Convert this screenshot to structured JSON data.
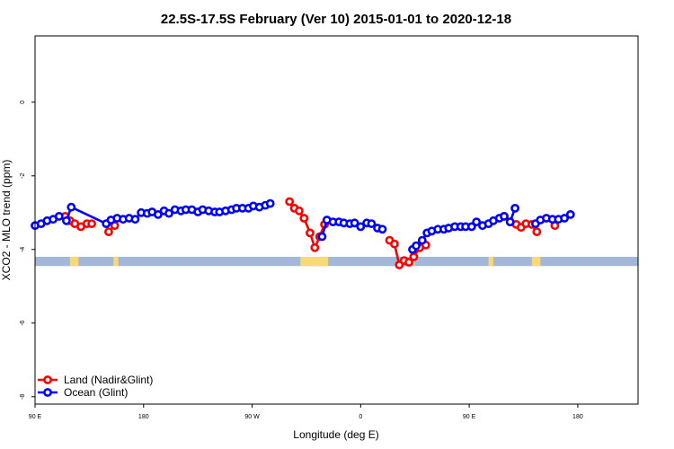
{
  "chart_data": {
    "type": "line",
    "title": "22.5S-17.5S February (Ver 10)   2015-01-01 to 2020-12-18",
    "xlabel": "Longitude (deg E)",
    "ylabel": "XCO2 - MLO trend (ppm)",
    "xlim": [
      90,
      590
    ],
    "ylim": [
      -8.2,
      1.8
    ],
    "x_ticks": [
      {
        "value": 90,
        "label": "90 E"
      },
      {
        "value": 180,
        "label": "180"
      },
      {
        "value": 270,
        "label": "90 W"
      },
      {
        "value": 360,
        "label": "0"
      },
      {
        "value": 450,
        "label": "90 E"
      },
      {
        "value": 540,
        "label": "180"
      }
    ],
    "y_ticks": [
      {
        "value": 0,
        "label": "0"
      },
      {
        "value": -2,
        "label": "-2"
      },
      {
        "value": -4,
        "label": "-4"
      },
      {
        "value": -6,
        "label": "-6"
      },
      {
        "value": -8,
        "label": "-8"
      }
    ],
    "grid": false,
    "legend_position": "bottom-left",
    "land_mask": {
      "y_range": [
        -4.45,
        -4.2
      ],
      "ocean_color": "#a3b8d9",
      "land_color": "#f7d97c",
      "land_segments": [
        [
          119,
          126
        ],
        [
          155,
          159
        ],
        [
          310,
          333
        ],
        [
          404,
          405
        ],
        [
          466,
          470
        ],
        [
          502,
          509
        ]
      ]
    },
    "series": [
      {
        "name": "Land (Nadir&Glint)",
        "color": "#ff0000",
        "segments": [
          [
            [
              115,
              -3.1
            ],
            [
              119,
              -3.22
            ],
            [
              123,
              -3.3
            ],
            [
              128,
              -3.38
            ],
            [
              133,
              -3.3
            ],
            [
              137,
              -3.3
            ]
          ],
          [
            [
              151,
              -3.52
            ],
            [
              156,
              -3.35
            ]
          ],
          [
            [
              301,
              -2.7
            ],
            [
              305,
              -2.88
            ],
            [
              309,
              -2.95
            ],
            [
              313,
              -3.15
            ],
            [
              318,
              -3.55
            ],
            [
              322,
              -3.95
            ],
            [
              326,
              -3.65
            ],
            [
              330,
              -3.32
            ]
          ],
          [
            [
              384,
              -3.75
            ],
            [
              388,
              -3.85
            ],
            [
              392,
              -4.42
            ],
            [
              396,
              -4.3
            ],
            [
              400,
              -4.35
            ],
            [
              404,
              -4.2
            ],
            [
              409,
              -3.95
            ],
            [
              414,
              -3.88
            ]
          ],
          [
            [
              479,
              -3.1
            ],
            [
              484,
              -3.25
            ],
            [
              489,
              -3.32
            ],
            [
              493,
              -3.4
            ],
            [
              497,
              -3.3
            ],
            [
              502,
              -3.32
            ],
            [
              506,
              -3.52
            ]
          ],
          [
            [
              521,
              -3.35
            ]
          ]
        ]
      },
      {
        "name": "Ocean (Glint)",
        "color": "#0000ff",
        "segments": [
          [
            [
              90,
              -3.35
            ],
            [
              95,
              -3.3
            ],
            [
              100,
              -3.22
            ],
            [
              105,
              -3.18
            ],
            [
              110,
              -3.1
            ],
            [
              116,
              -3.22
            ],
            [
              120,
              -2.85
            ],
            [
              149,
              -3.3
            ],
            [
              153,
              -3.2
            ],
            [
              158,
              -3.15
            ],
            [
              163,
              -3.18
            ],
            [
              168,
              -3.15
            ],
            [
              173,
              -3.18
            ],
            [
              178,
              -3.0
            ],
            [
              183,
              -3.02
            ],
            [
              187,
              -2.98
            ],
            [
              192,
              -3.05
            ],
            [
              197,
              -2.95
            ],
            [
              201,
              -3.02
            ],
            [
              206,
              -2.92
            ],
            [
              211,
              -2.95
            ],
            [
              215,
              -2.92
            ],
            [
              220,
              -2.92
            ],
            [
              225,
              -2.98
            ],
            [
              229,
              -2.92
            ],
            [
              234,
              -2.95
            ],
            [
              239,
              -2.98
            ],
            [
              243,
              -2.98
            ],
            [
              248,
              -2.95
            ],
            [
              253,
              -2.92
            ],
            [
              257,
              -2.88
            ],
            [
              262,
              -2.88
            ],
            [
              267,
              -2.88
            ],
            [
              271,
              -2.82
            ],
            [
              276,
              -2.85
            ],
            [
              281,
              -2.8
            ],
            [
              285,
              -2.75
            ]
          ],
          [
            [
              328,
              -3.65
            ],
            [
              332,
              -3.2
            ],
            [
              337,
              -3.25
            ],
            [
              342,
              -3.25
            ],
            [
              346,
              -3.28
            ],
            [
              351,
              -3.3
            ],
            [
              355,
              -3.28
            ],
            [
              360,
              -3.38
            ],
            [
              365,
              -3.28
            ],
            [
              369,
              -3.3
            ],
            [
              374,
              -3.42
            ],
            [
              378,
              -3.45
            ]
          ],
          [
            [
              403,
              -4.0
            ],
            [
              406,
              -3.9
            ],
            [
              411,
              -3.75
            ],
            [
              415,
              -3.55
            ],
            [
              419,
              -3.5
            ],
            [
              424,
              -3.45
            ],
            [
              429,
              -3.45
            ],
            [
              433,
              -3.42
            ],
            [
              438,
              -3.38
            ],
            [
              443,
              -3.38
            ],
            [
              447,
              -3.38
            ],
            [
              452,
              -3.38
            ],
            [
              456,
              -3.25
            ],
            [
              461,
              -3.35
            ],
            [
              466,
              -3.3
            ],
            [
              470,
              -3.22
            ],
            [
              475,
              -3.15
            ],
            [
              479,
              -3.1
            ],
            [
              484,
              -3.25
            ],
            [
              488,
              -2.88
            ]
          ],
          [
            [
              505,
              -3.3
            ],
            [
              509,
              -3.2
            ],
            [
              514,
              -3.15
            ],
            [
              519,
              -3.18
            ],
            [
              524,
              -3.18
            ],
            [
              529,
              -3.15
            ],
            [
              534,
              -3.05
            ]
          ]
        ]
      }
    ]
  }
}
